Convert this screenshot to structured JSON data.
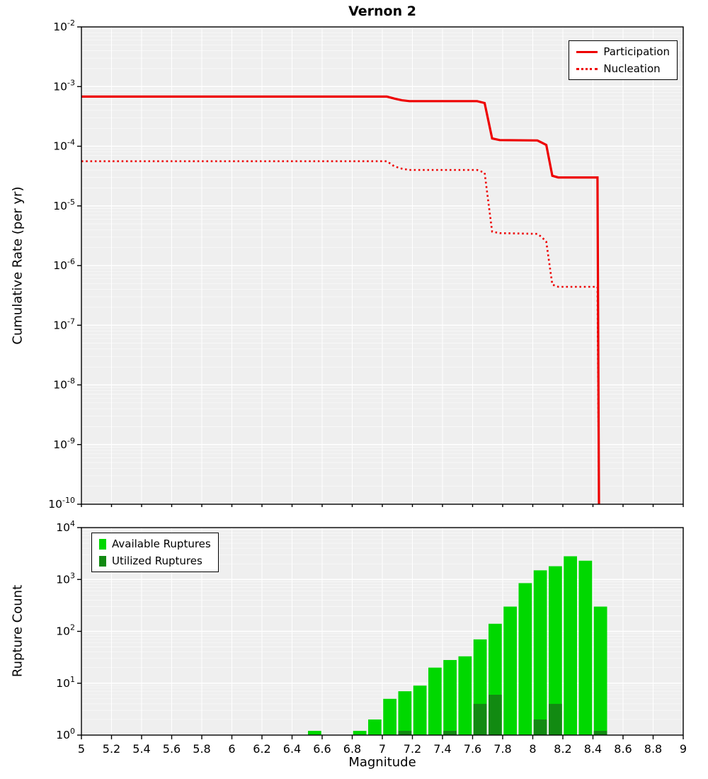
{
  "title": "Vernon 2",
  "colors": {
    "plot_bg": "#efefef",
    "grid": "#ffffff",
    "axis": "#000000",
    "red": "#ee0000",
    "available_green": "#00d800",
    "utilized_green": "#128a12"
  },
  "chart_data": [
    {
      "type": "line",
      "title": "Vernon 2",
      "xlabel": "",
      "ylabel": "Cumulative Rate (per yr)",
      "xlim": [
        5,
        9
      ],
      "ylim_log10": [
        -10,
        -2
      ],
      "grid": true,
      "legend_position": "top-right",
      "x_tick_labels": [
        "5",
        "5.2",
        "5.4",
        "5.6",
        "5.8",
        "6",
        "6.2",
        "6.4",
        "6.6",
        "6.8",
        "7",
        "7.2",
        "7.4",
        "7.6",
        "7.8",
        "8",
        "8.2",
        "8.4",
        "8.6",
        "8.8",
        "9"
      ],
      "y_tick_exponents": [
        -2,
        -3,
        -4,
        -5,
        -6,
        -7,
        -8,
        -9,
        -10
      ],
      "series": [
        {
          "name": "Participation",
          "style": "solid",
          "color": "#ee0000",
          "points": [
            [
              5.0,
              0.00068
            ],
            [
              7.03,
              0.00068
            ],
            [
              7.08,
              0.00063
            ],
            [
              7.13,
              0.00059
            ],
            [
              7.18,
              0.00057
            ],
            [
              7.63,
              0.00057
            ],
            [
              7.68,
              0.00053
            ],
            [
              7.73,
              0.000135
            ],
            [
              7.78,
              0.000127
            ],
            [
              8.03,
              0.000125
            ],
            [
              8.06,
              0.000115
            ],
            [
              8.09,
              0.000105
            ],
            [
              8.13,
              3.2e-05
            ],
            [
              8.17,
              3e-05
            ],
            [
              8.43,
              3e-05
            ],
            [
              8.44,
              1e-10
            ]
          ]
        },
        {
          "name": "Nucleation",
          "style": "dotted",
          "color": "#ee0000",
          "points": [
            [
              5.0,
              5.6e-05
            ],
            [
              7.03,
              5.6e-05
            ],
            [
              7.08,
              4.6e-05
            ],
            [
              7.13,
              4.2e-05
            ],
            [
              7.18,
              4e-05
            ],
            [
              7.63,
              4e-05
            ],
            [
              7.68,
              3.6e-05
            ],
            [
              7.73,
              3.7e-06
            ],
            [
              7.78,
              3.5e-06
            ],
            [
              8.03,
              3.4e-06
            ],
            [
              8.06,
              3e-06
            ],
            [
              8.09,
              2.5e-06
            ],
            [
              8.13,
              4.8e-07
            ],
            [
              8.17,
              4.4e-07
            ],
            [
              8.43,
              4.4e-07
            ],
            [
              8.44,
              1e-10
            ]
          ]
        }
      ]
    },
    {
      "type": "bar",
      "title": "",
      "xlabel": "Magnitude",
      "ylabel": "Rupture Count",
      "xlim": [
        5,
        9
      ],
      "ylim_log10": [
        0,
        4
      ],
      "bin_width": 0.1,
      "grid": true,
      "legend_position": "top-left",
      "x_tick_labels": [
        "5",
        "5.2",
        "5.4",
        "5.6",
        "5.8",
        "6",
        "6.2",
        "6.4",
        "6.6",
        "6.8",
        "7",
        "7.2",
        "7.4",
        "7.6",
        "7.8",
        "8",
        "8.2",
        "8.4",
        "8.6",
        "8.8",
        "9"
      ],
      "y_tick_exponents": [
        0,
        1,
        2,
        3,
        4
      ],
      "series": [
        {
          "name": "Available Ruptures",
          "color": "#00d800",
          "bars": [
            [
              6.55,
              1
            ],
            [
              6.85,
              1
            ],
            [
              6.95,
              2
            ],
            [
              7.05,
              5
            ],
            [
              7.15,
              7
            ],
            [
              7.25,
              9
            ],
            [
              7.35,
              20
            ],
            [
              7.45,
              28
            ],
            [
              7.55,
              33
            ],
            [
              7.65,
              70
            ],
            [
              7.75,
              140
            ],
            [
              7.85,
              300
            ],
            [
              7.95,
              850
            ],
            [
              8.05,
              1500
            ],
            [
              8.15,
              1800
            ],
            [
              8.25,
              2800
            ],
            [
              8.35,
              2300
            ],
            [
              8.45,
              300
            ]
          ]
        },
        {
          "name": "Utilized Ruptures",
          "color": "#128a12",
          "bars": [
            [
              7.15,
              1
            ],
            [
              7.45,
              1
            ],
            [
              7.65,
              4
            ],
            [
              7.75,
              6
            ],
            [
              8.05,
              2
            ],
            [
              8.15,
              4
            ],
            [
              8.45,
              1
            ]
          ]
        }
      ]
    }
  ]
}
